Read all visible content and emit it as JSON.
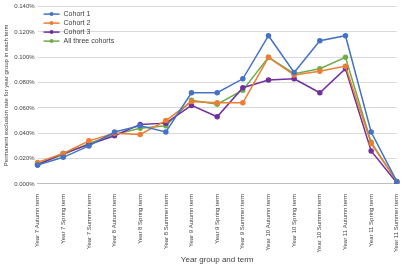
{
  "chart_data": {
    "type": "line",
    "x_label": "Year group and term",
    "y_label": "Permanent exclusion rate for year group in each term",
    "categories": [
      "Year 7 Autumn term",
      "Year 7 Spring term",
      "Year 7 Summer term",
      "Year 8 Autumn term",
      "Year 8 Spring term",
      "Year 8 Summer term",
      "Year 9 Autumn term",
      "Year 9 Spring term",
      "Year 9 Summer term",
      "Year 10 Autumn term",
      "Year 10 Spring term",
      "Year 10 Summer term",
      "Year 11 Autumn term",
      "Year 11 Spring term",
      "Year 11 Summer term"
    ],
    "series": [
      {
        "name": "Cohort 1",
        "color": "#4472c4",
        "values": [
          0.015,
          0.021,
          0.03,
          0.041,
          0.046,
          0.041,
          0.072,
          0.072,
          0.083,
          0.117,
          0.088,
          0.113,
          0.117,
          0.041,
          0.002
        ]
      },
      {
        "name": "Cohort 2",
        "color": "#ed7d31",
        "values": [
          0.017,
          0.024,
          0.034,
          0.04,
          0.039,
          0.05,
          0.065,
          0.064,
          0.064,
          0.1,
          0.086,
          0.089,
          0.093,
          0.032,
          0.002
        ]
      },
      {
        "name": "Cohort 3",
        "color": "#7030a0",
        "values": [
          0.015,
          0.024,
          0.031,
          0.038,
          0.047,
          0.048,
          0.062,
          0.053,
          0.076,
          0.082,
          0.083,
          0.072,
          0.091,
          0.026,
          0.001
        ]
      },
      {
        "name": "All three cohorts",
        "color": "#70ad47",
        "values": [
          0.016,
          0.023,
          0.032,
          0.039,
          0.044,
          0.046,
          0.066,
          0.063,
          0.074,
          0.1,
          0.087,
          0.091,
          0.1,
          0.033,
          0.002
        ]
      }
    ],
    "ylim": [
      0,
      0.14
    ],
    "yticks": [
      {
        "value": 0,
        "label": "0.000%"
      },
      {
        "value": 0.02,
        "label": "0.020%"
      },
      {
        "value": 0.04,
        "label": "0.040%"
      },
      {
        "value": 0.06,
        "label": "0.060%"
      },
      {
        "value": 0.08,
        "label": "0.080%"
      },
      {
        "value": 0.1,
        "label": "0.100%"
      },
      {
        "value": 0.12,
        "label": "0.120%"
      },
      {
        "value": 0.14,
        "label": "0.140%"
      }
    ],
    "grid": true,
    "legend": "upper left",
    "marker": "circle"
  }
}
